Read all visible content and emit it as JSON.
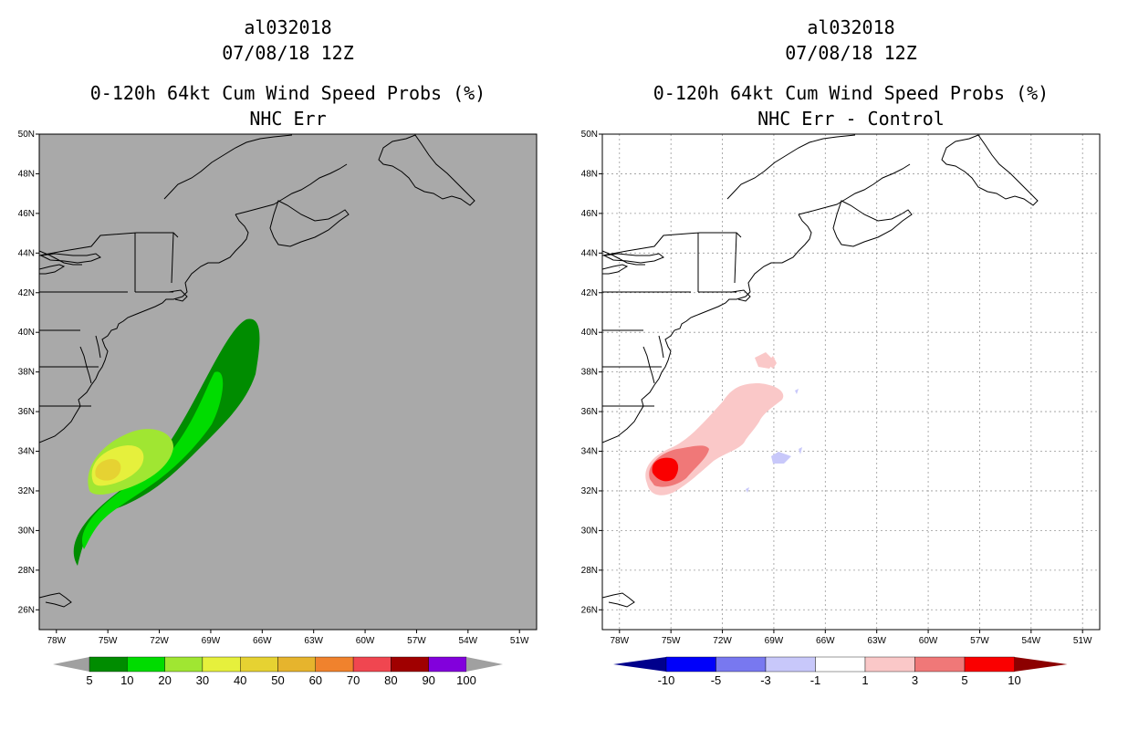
{
  "panels": [
    {
      "title_lines": [
        "al032018",
        "07/08/18 12Z",
        "0-120h 64kt Cum Wind Speed Probs (%)",
        "NHC Err"
      ],
      "background_color": "#a9a9a9",
      "grid_visible": false
    },
    {
      "title_lines": [
        "al032018",
        "07/08/18 12Z",
        "0-120h 64kt Cum Wind Speed Probs (%)",
        "NHC Err - Control"
      ],
      "background_color": "#ffffff",
      "grid_visible": true
    }
  ],
  "axes": {
    "lat_labels": [
      "50N",
      "48N",
      "46N",
      "44N",
      "42N",
      "40N",
      "38N",
      "36N",
      "34N",
      "32N",
      "30N",
      "28N",
      "26N"
    ],
    "lon_labels": [
      "78W",
      "75W",
      "72W",
      "69W",
      "66W",
      "63W",
      "60W",
      "57W",
      "54W",
      "51W"
    ],
    "lat_range": [
      25,
      50
    ],
    "lon_range": [
      -79,
      -50
    ]
  },
  "colorbars": [
    {
      "labels": [
        "5",
        "10",
        "20",
        "30",
        "40",
        "50",
        "60",
        "70",
        "80",
        "90",
        "100"
      ],
      "colors": [
        "#008c00",
        "#00dc00",
        "#a0e632",
        "#e6f03c",
        "#e6d232",
        "#e6b42d",
        "#f0822d",
        "#f04650",
        "#a00000",
        "#8200dc"
      ],
      "under_color": "#a0a0a0",
      "over_color": "#a0a0a0"
    },
    {
      "labels": [
        "-10",
        "-5",
        "-3",
        "-1",
        "1",
        "3",
        "5",
        "10"
      ],
      "colors": [
        "#0000fa",
        "#7878f0",
        "#c8c8fa",
        "#ffffff",
        "#fac8c8",
        "#f07878",
        "#fa0000"
      ],
      "under_color": "#00008c",
      "over_color": "#8c0000"
    }
  ]
}
